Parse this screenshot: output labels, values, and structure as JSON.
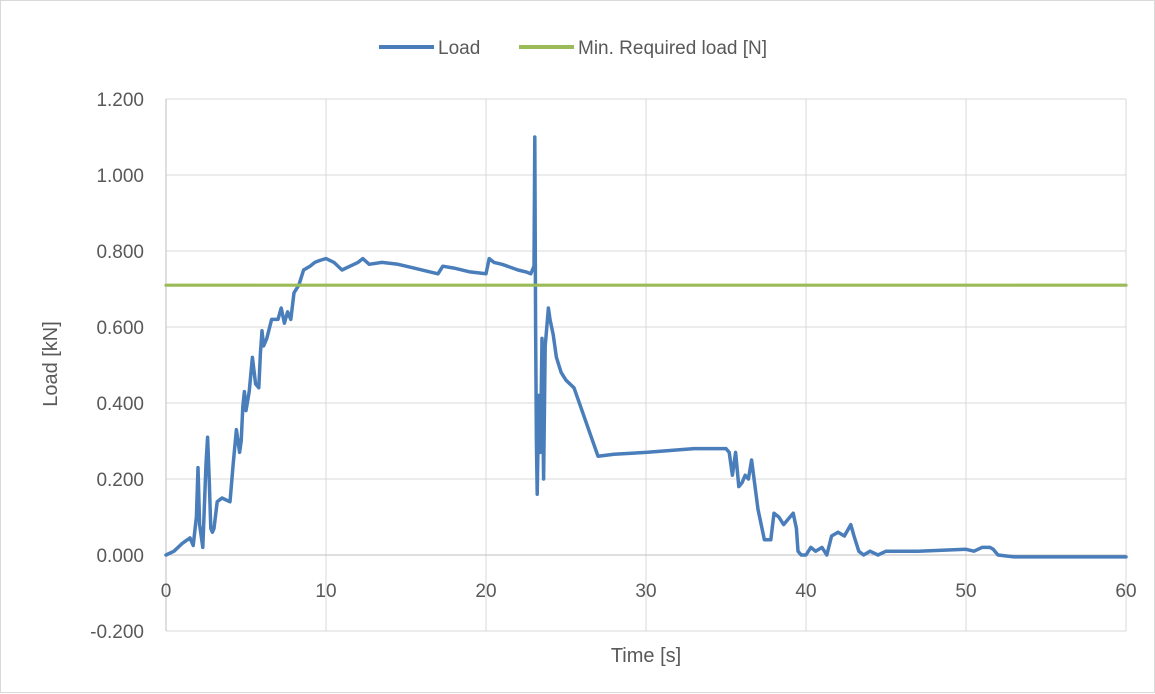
{
  "chart_data": {
    "type": "line",
    "title": "",
    "xlabel": "Time [s]",
    "ylabel": "Load [kN]",
    "xlim": [
      0,
      60
    ],
    "ylim": [
      -0.2,
      1.2
    ],
    "x_ticks": [
      0,
      10,
      20,
      30,
      40,
      50,
      60
    ],
    "x_tick_labels": [
      "0",
      "10",
      "20",
      "30",
      "40",
      "50",
      "60"
    ],
    "y_ticks": [
      -0.2,
      0,
      0.2,
      0.4,
      0.6,
      0.8,
      1.0,
      1.2
    ],
    "y_tick_labels": [
      "-0.200",
      "0.000",
      "0.200",
      "0.400",
      "0.600",
      "0.800",
      "1.000",
      "1.200"
    ],
    "grid": true,
    "legend_position": "top-center",
    "series": [
      {
        "name": "Load",
        "color": "#4a7ebb",
        "x": [
          0,
          0.5,
          1,
          1.5,
          1.7,
          1.9,
          2.0,
          2.1,
          2.3,
          2.5,
          2.6,
          2.7,
          2.8,
          2.9,
          3.0,
          3.2,
          3.5,
          4.0,
          4.2,
          4.4,
          4.6,
          4.7,
          4.8,
          4.9,
          5.0,
          5.2,
          5.4,
          5.6,
          5.8,
          5.9,
          6.0,
          6.1,
          6.3,
          6.6,
          7.0,
          7.2,
          7.4,
          7.6,
          7.8,
          8.0,
          8.3,
          8.6,
          9.0,
          9.3,
          9.6,
          10.0,
          10.5,
          11.0,
          11.5,
          12.0,
          12.3,
          12.7,
          13.5,
          14.5,
          15.5,
          16.5,
          17.0,
          17.3,
          18.0,
          19.0,
          20.0,
          20.2,
          20.5,
          21.0,
          22.0,
          22.5,
          22.8,
          23.0,
          23.05,
          23.1,
          23.15,
          23.2,
          23.3,
          23.4,
          23.5,
          23.6,
          23.7,
          23.8,
          23.9,
          24.0,
          24.2,
          24.4,
          24.7,
          25.0,
          25.5,
          26.0,
          26.5,
          27.0,
          28.0,
          30.0,
          33.0,
          35.0,
          35.2,
          35.4,
          35.6,
          35.8,
          36.0,
          36.2,
          36.4,
          36.6,
          37.0,
          37.4,
          37.8,
          38.0,
          38.3,
          38.6,
          39.0,
          39.2,
          39.4,
          39.5,
          39.7,
          40.0,
          40.3,
          40.6,
          41.0,
          41.3,
          41.6,
          42.0,
          42.4,
          42.8,
          43.0,
          43.3,
          43.6,
          44.0,
          44.5,
          45.0,
          47.0,
          50.0,
          50.5,
          51.0,
          51.5,
          51.7,
          52.0,
          53.0,
          55.0,
          58.0,
          60.0
        ],
        "values": [
          0.0,
          0.01,
          0.03,
          0.045,
          0.025,
          0.1,
          0.23,
          0.08,
          0.02,
          0.24,
          0.31,
          0.2,
          0.07,
          0.06,
          0.07,
          0.14,
          0.15,
          0.14,
          0.24,
          0.33,
          0.27,
          0.3,
          0.39,
          0.43,
          0.38,
          0.43,
          0.52,
          0.45,
          0.44,
          0.53,
          0.59,
          0.55,
          0.57,
          0.62,
          0.62,
          0.65,
          0.61,
          0.64,
          0.62,
          0.69,
          0.71,
          0.75,
          0.76,
          0.77,
          0.775,
          0.78,
          0.77,
          0.75,
          0.76,
          0.77,
          0.78,
          0.765,
          0.77,
          0.765,
          0.755,
          0.745,
          0.74,
          0.76,
          0.755,
          0.745,
          0.74,
          0.78,
          0.77,
          0.765,
          0.75,
          0.745,
          0.74,
          0.76,
          1.1,
          0.6,
          0.3,
          0.16,
          0.42,
          0.27,
          0.57,
          0.2,
          0.55,
          0.6,
          0.65,
          0.62,
          0.58,
          0.52,
          0.48,
          0.46,
          0.44,
          0.38,
          0.32,
          0.26,
          0.265,
          0.27,
          0.28,
          0.28,
          0.27,
          0.21,
          0.27,
          0.18,
          0.19,
          0.21,
          0.2,
          0.25,
          0.12,
          0.04,
          0.04,
          0.11,
          0.1,
          0.08,
          0.1,
          0.11,
          0.07,
          0.01,
          0.0,
          0.0,
          0.02,
          0.01,
          0.02,
          0.0,
          0.05,
          0.06,
          0.05,
          0.08,
          0.05,
          0.01,
          0.0,
          0.01,
          0.0,
          0.01,
          0.01,
          0.015,
          0.01,
          0.02,
          0.02,
          0.015,
          0.0,
          -0.005,
          -0.005,
          -0.005,
          -0.005
        ]
      },
      {
        "name": "Min. Required load [N]",
        "color": "#9bbb59",
        "x": [
          0,
          60
        ],
        "values": [
          0.71,
          0.71
        ]
      }
    ]
  }
}
